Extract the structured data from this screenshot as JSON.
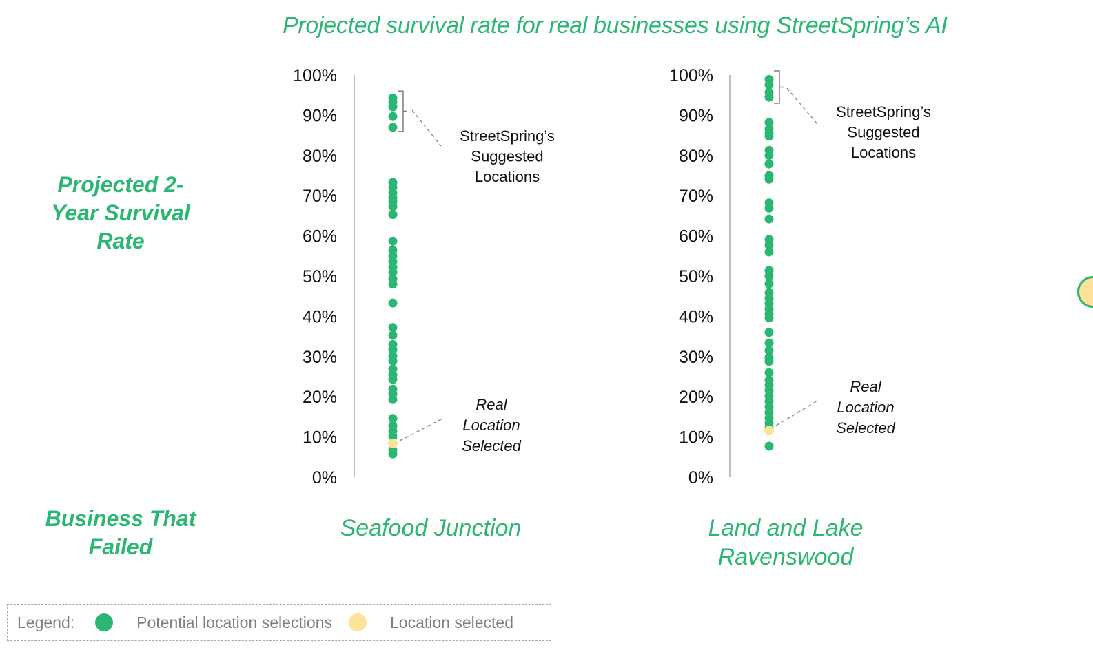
{
  "title": "Projected survival rate for real businesses using StreetSpring’s AI",
  "side_labels": {
    "y_axis_label_lines": [
      "Projected 2-",
      "Year Survival",
      "Rate"
    ],
    "x_axis_label_lines": [
      "Business That",
      "Failed"
    ]
  },
  "colors": {
    "accent_green": "#2bb673",
    "selected_yellow": "#fde29b",
    "axis_gray": "#bfbfbf",
    "legend_text": "#7f7f7f"
  },
  "legend": {
    "prefix": "Legend:",
    "items": [
      {
        "label": "Potential location selections",
        "color": "#2bb673"
      },
      {
        "label": "Location selected",
        "color": "#fde29b"
      }
    ]
  },
  "annotations": {
    "suggested": [
      "StreetSpring’s",
      "Suggested",
      "Locations"
    ],
    "real": [
      "Real",
      "Location",
      "Selected"
    ]
  },
  "chart_data": [
    {
      "type": "scatter",
      "title": "Seafood Junction",
      "xlabel": "Business That Failed",
      "ylabel": "Projected 2-Year Survival Rate",
      "yticks": [
        "0%",
        "10%",
        "20%",
        "30%",
        "40%",
        "50%",
        "60%",
        "70%",
        "80%",
        "90%",
        "100%"
      ],
      "ylim": [
        0,
        100
      ],
      "grid": false,
      "legend_position": "bottom-left",
      "series": [
        {
          "name": "Potential location selections",
          "values": [
            94.3,
            93.3,
            92.1,
            89.7,
            87.0,
            73.3,
            72.1,
            70.7,
            69.5,
            68.5,
            67.3,
            65.3,
            58.7,
            56.5,
            55.0,
            53.6,
            52.2,
            51.0,
            49.3,
            48.0,
            43.3,
            37.2,
            35.3,
            33.0,
            31.7,
            30.1,
            28.9,
            26.9,
            25.5,
            24.3,
            21.9,
            20.7,
            19.3,
            14.6,
            12.8,
            11.5,
            10.1,
            6.8,
            5.8
          ]
        },
        {
          "name": "Location selected",
          "values": [
            8.4
          ]
        }
      ],
      "annotations": [
        {
          "text": "StreetSpring’s Suggested Locations",
          "range": [
            87,
            95
          ]
        },
        {
          "text": "Real Location Selected",
          "value": 8.4
        }
      ]
    },
    {
      "type": "scatter",
      "title": "Land and Lake Ravenswood",
      "xlabel": "Business That Failed",
      "ylabel": "Projected 2-Year Survival Rate",
      "yticks": [
        "0%",
        "10%",
        "20%",
        "30%",
        "40%",
        "50%",
        "60%",
        "70%",
        "80%",
        "90%",
        "100%"
      ],
      "ylim": [
        0,
        100
      ],
      "grid": false,
      "series": [
        {
          "name": "Potential location selections",
          "values": [
            98.9,
            97.6,
            95.7,
            94.5,
            88.2,
            86.6,
            85.6,
            84.8,
            81.3,
            80.0,
            77.9,
            75.0,
            74.1,
            68.2,
            66.9,
            64.2,
            59.1,
            57.7,
            56.0,
            51.4,
            50.0,
            48.1,
            45.9,
            44.5,
            43.2,
            41.8,
            40.6,
            39.6,
            36.0,
            33.4,
            31.5,
            29.8,
            28.8,
            26.0,
            24.1,
            22.9,
            21.6,
            20.2,
            18.8,
            17.5,
            16.1,
            14.7,
            13.4,
            12.3,
            7.7
          ]
        },
        {
          "name": "Location selected",
          "values": [
            11.6
          ]
        }
      ],
      "annotations": [
        {
          "text": "StreetSpring’s Suggested Locations",
          "range": [
            94,
            100
          ]
        },
        {
          "text": "Real Location Selected",
          "value": 11.6
        }
      ]
    }
  ]
}
